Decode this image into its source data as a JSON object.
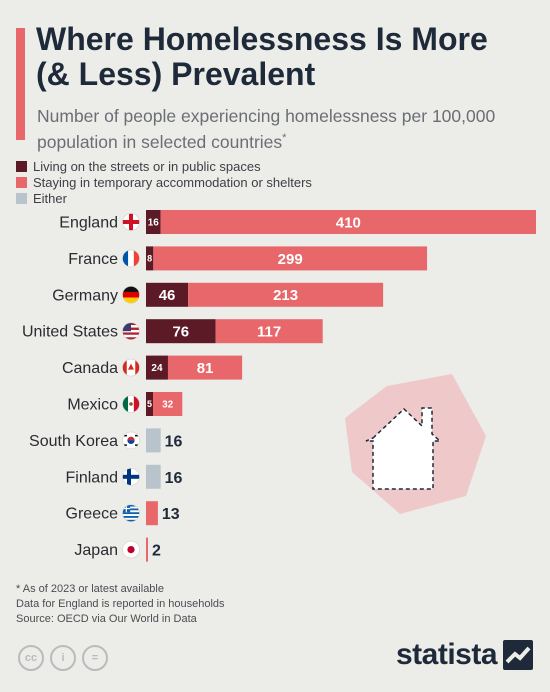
{
  "title": "Where Homelessness Is More (& Less) Prevalent",
  "subtitle": "Number of people experiencing homelessness per 100,000 population in selected countries",
  "subtitle_marker": "*",
  "legend": [
    {
      "label": "Living on the streets or in public spaces",
      "color": "#5c1a26"
    },
    {
      "label": "Staying in temporary accommodation or shelters",
      "color": "#e8676b"
    },
    {
      "label": "Either",
      "color": "#b8c3cc"
    }
  ],
  "chart_data": {
    "type": "bar",
    "orientation": "horizontal",
    "stacked": true,
    "categories": [
      "England",
      "France",
      "Germany",
      "United States",
      "Canada",
      "Mexico",
      "South Korea",
      "Finland",
      "Greece",
      "Japan"
    ],
    "flag_icons": [
      "flag-england-icon",
      "flag-france-icon",
      "flag-germany-icon",
      "flag-usa-icon",
      "flag-canada-icon",
      "flag-mexico-icon",
      "flag-south-korea-icon",
      "flag-finland-icon",
      "flag-greece-icon",
      "flag-japan-icon"
    ],
    "series": [
      {
        "name": "Living on the streets or in public spaces",
        "color": "#5c1a26",
        "values": [
          16,
          8,
          46,
          76,
          24,
          5,
          null,
          null,
          null,
          null
        ]
      },
      {
        "name": "Staying in temporary accommodation or shelters",
        "color": "#e8676b",
        "values": [
          410,
          299,
          213,
          117,
          81,
          32,
          0,
          0,
          13,
          2
        ]
      },
      {
        "name": "Either",
        "color": "#b8c3cc",
        "values": [
          null,
          null,
          null,
          null,
          null,
          null,
          16,
          16,
          null,
          null
        ]
      }
    ],
    "xlim": [
      0,
      426
    ],
    "grid": false,
    "legend_position": "top-left"
  },
  "footnotes": [
    "* As of 2023 or latest available",
    "Data for England is reported in households",
    "Source: OECD via Our World in Data"
  ],
  "license_icons": [
    "cc-icon",
    "by-icon",
    "nd-icon"
  ],
  "license_labels": [
    "cc",
    "i",
    "="
  ],
  "brand": "statista"
}
